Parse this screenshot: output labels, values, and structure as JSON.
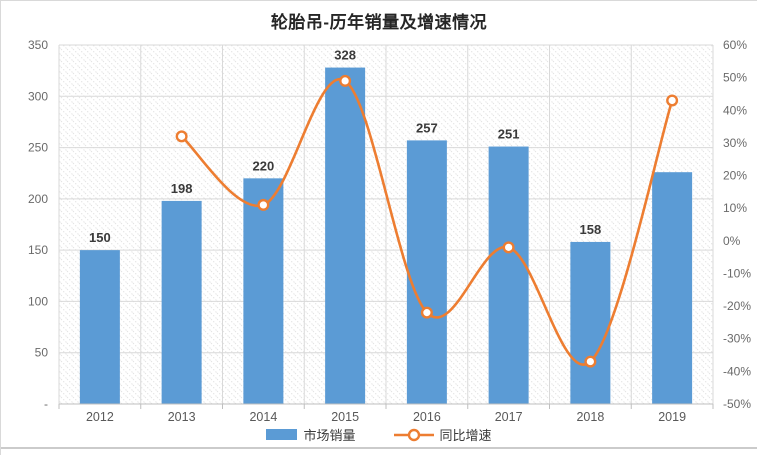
{
  "chart_data": {
    "type": "bar+line combo",
    "title": "轮胎吊-历年销量及增速情况",
    "categories": [
      "2012",
      "2013",
      "2014",
      "2015",
      "2016",
      "2017",
      "2018",
      "2019"
    ],
    "series": [
      {
        "name": "市场销量",
        "type": "bar",
        "axis": "left",
        "color": "#5B9BD5",
        "values": [
          150,
          198,
          220,
          328,
          257,
          251,
          158,
          226
        ],
        "data_labels": [
          "150",
          "198",
          "220",
          "328",
          "257",
          "251",
          "158",
          ""
        ]
      },
      {
        "name": "同比增速",
        "type": "line",
        "axis": "right",
        "color": "#ED7D31",
        "marker": "circle-open",
        "smooth": true,
        "values": [
          null,
          32,
          11,
          49,
          -22,
          -2,
          -37,
          43
        ]
      }
    ],
    "left_axis": {
      "min": 0,
      "max": 350,
      "step": 50,
      "tick_labels": [
        "350",
        "300",
        "250",
        "200",
        "150",
        "100",
        "50",
        "-"
      ]
    },
    "right_axis": {
      "min": -50,
      "max": 60,
      "step": 10,
      "tick_labels": [
        "60%",
        "50%",
        "40%",
        "30%",
        "20%",
        "10%",
        "0%",
        "-10%",
        "-20%",
        "-30%",
        "-40%",
        "-50%"
      ]
    },
    "legend": {
      "position": "bottom",
      "items": [
        "市场销量",
        "同比增速"
      ]
    },
    "grid": {
      "horizontal": true,
      "vertical": true
    },
    "plot_background": "diagonal-hatch",
    "style": {
      "grid_color": "#D9D9D9",
      "axis_line_color": "#BFBFBF",
      "hatch_color": "#E3E3E3",
      "tick_text_color": "#6A6A6A",
      "year_text_color": "#595959",
      "data_label_color": "#3A3A3A",
      "title_color": "#262626",
      "background": "#FFFFFF",
      "separator_color": "#CBCBCB"
    }
  }
}
